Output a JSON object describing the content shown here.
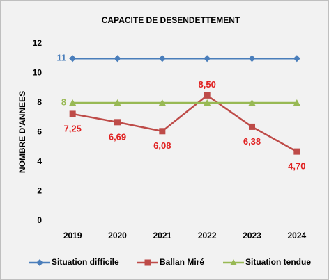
{
  "chart_data": {
    "type": "line",
    "title": "CAPACITE DE DESENDETTEMENT",
    "y_label": "NOMBRE D'ANNEES",
    "categories": [
      "2019",
      "2020",
      "2021",
      "2022",
      "2023",
      "2024"
    ],
    "ylim": [
      0,
      12
    ],
    "yticks": [
      0,
      2,
      4,
      6,
      8,
      10,
      12
    ],
    "grid": false,
    "legend": "bottom",
    "series": [
      {
        "name": "Situation difficile",
        "color": "#4a7ebb",
        "marker": "diamond",
        "values": [
          11,
          11,
          11,
          11,
          11,
          11
        ],
        "value_labels": [
          "11",
          null,
          null,
          null,
          null,
          null
        ]
      },
      {
        "name": "Ballan Miré",
        "color": "#be4b48",
        "marker": "square",
        "values": [
          7.25,
          6.69,
          6.08,
          8.5,
          6.38,
          4.7
        ],
        "value_labels": [
          "7,25",
          "6,69",
          "6,08",
          "8,50",
          "6,38",
          "4,70"
        ]
      },
      {
        "name": "Situation tendue",
        "color": "#98b954",
        "marker": "triangle",
        "values": [
          8,
          8,
          8,
          8,
          8,
          8
        ],
        "value_labels": [
          "8",
          null,
          null,
          null,
          null,
          null
        ]
      }
    ]
  }
}
